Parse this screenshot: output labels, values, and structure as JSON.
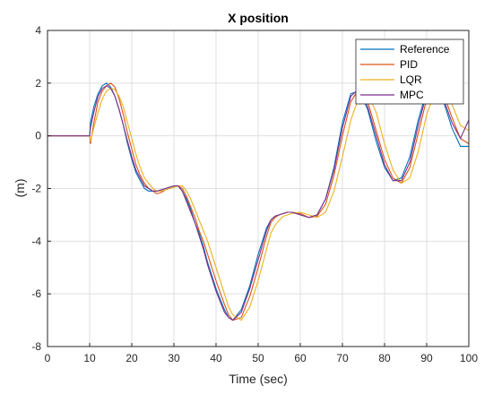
{
  "chart_data": {
    "type": "line",
    "title": "X position",
    "xlabel": "Time (sec)",
    "ylabel": "(m)",
    "xlim": [
      0,
      100
    ],
    "ylim": [
      -8,
      4
    ],
    "xticks": [
      "0",
      "10",
      "20",
      "30",
      "40",
      "50",
      "60",
      "70",
      "80",
      "90",
      "100"
    ],
    "yticks": [
      "4",
      "2",
      "0",
      "-2",
      "-4",
      "-6",
      "-8"
    ],
    "grid": true,
    "legend_position": "top-right",
    "series": [
      {
        "name": "Reference",
        "color": "#0072BD",
        "x": [
          0,
          10,
          10.2,
          11,
          12,
          13,
          14,
          15,
          16,
          17,
          18,
          19,
          20,
          21,
          22,
          23,
          24,
          25,
          26,
          27,
          28,
          29,
          30,
          31,
          32,
          33,
          34,
          35,
          36,
          37,
          38,
          40,
          42,
          43,
          44,
          46,
          48,
          50,
          52,
          53,
          54,
          55,
          56,
          57,
          58,
          60,
          62,
          64,
          66,
          68,
          70,
          72,
          74,
          76,
          78,
          80,
          82,
          84,
          86,
          88,
          90,
          92,
          94,
          96,
          98,
          100
        ],
        "y": [
          0,
          0,
          0.5,
          1.1,
          1.6,
          1.9,
          2.0,
          1.85,
          1.5,
          1.0,
          0.4,
          -0.3,
          -0.9,
          -1.4,
          -1.7,
          -2.0,
          -2.1,
          -2.1,
          -2.1,
          -2.05,
          -2.0,
          -1.95,
          -1.9,
          -1.9,
          -2.1,
          -2.4,
          -2.8,
          -3.3,
          -3.7,
          -4.2,
          -4.8,
          -5.8,
          -6.6,
          -6.9,
          -7.0,
          -6.6,
          -5.7,
          -4.5,
          -3.5,
          -3.2,
          -3.05,
          -3.0,
          -2.95,
          -2.9,
          -2.9,
          -3.0,
          -3.1,
          -3.0,
          -2.4,
          -1.2,
          0.5,
          1.6,
          1.7,
          1.0,
          -0.2,
          -1.2,
          -1.7,
          -1.6,
          -0.8,
          0.6,
          1.7,
          1.9,
          1.3,
          0.3,
          -0.4,
          -0.4
        ]
      },
      {
        "name": "PID",
        "color": "#D95319",
        "x": [
          0,
          10,
          10.2,
          11,
          12,
          13,
          14,
          15,
          16,
          17,
          18,
          19,
          20,
          21,
          22,
          23,
          24,
          25,
          26,
          27,
          28,
          29,
          30,
          31,
          32,
          33,
          34,
          35,
          36,
          37,
          38,
          40,
          42,
          43,
          44,
          46,
          48,
          50,
          52,
          53,
          54,
          55,
          56,
          57,
          58,
          60,
          62,
          64,
          66,
          68,
          70,
          72,
          74,
          76,
          78,
          80,
          82,
          84,
          86,
          88,
          90,
          92,
          94,
          96,
          98,
          100
        ],
        "y": [
          0,
          0,
          -0.3,
          0.5,
          1.3,
          1.7,
          1.9,
          2.0,
          1.85,
          1.4,
          0.8,
          0.1,
          -0.5,
          -1.1,
          -1.5,
          -1.8,
          -2.0,
          -2.1,
          -2.2,
          -2.15,
          -2.05,
          -2.0,
          -1.95,
          -1.9,
          -2.0,
          -2.3,
          -2.7,
          -3.1,
          -3.6,
          -4.0,
          -4.5,
          -5.5,
          -6.4,
          -6.8,
          -7.0,
          -6.9,
          -6.1,
          -5.0,
          -3.8,
          -3.3,
          -3.1,
          -3.0,
          -2.95,
          -2.9,
          -2.9,
          -2.95,
          -3.1,
          -3.05,
          -2.6,
          -1.5,
          0.0,
          1.3,
          1.8,
          1.3,
          0.2,
          -0.9,
          -1.6,
          -1.8,
          -1.2,
          0.1,
          1.4,
          1.9,
          1.6,
          0.7,
          -0.1,
          -0.3
        ]
      },
      {
        "name": "LQR",
        "color": "#EDB120",
        "x": [
          0,
          10,
          10.2,
          11,
          12,
          13,
          14,
          15,
          16,
          17,
          18,
          19,
          20,
          21,
          22,
          23,
          24,
          25,
          26,
          27,
          28,
          29,
          30,
          31,
          32,
          33,
          34,
          35,
          36,
          37,
          38,
          40,
          42,
          43,
          44,
          46,
          48,
          50,
          52,
          53,
          54,
          55,
          56,
          57,
          58,
          60,
          62,
          64,
          66,
          68,
          70,
          72,
          74,
          76,
          78,
          80,
          82,
          84,
          86,
          88,
          90,
          92,
          94,
          96,
          98,
          100
        ],
        "y": [
          0,
          0,
          -0.2,
          0.3,
          0.9,
          1.4,
          1.7,
          1.8,
          1.75,
          1.5,
          1.1,
          0.5,
          -0.1,
          -0.7,
          -1.2,
          -1.6,
          -1.8,
          -2.0,
          -2.1,
          -2.1,
          -2.05,
          -2.0,
          -1.95,
          -1.9,
          -1.9,
          -2.1,
          -2.4,
          -2.8,
          -3.2,
          -3.6,
          -4.0,
          -5.0,
          -6.0,
          -6.5,
          -6.8,
          -7.0,
          -6.5,
          -5.5,
          -4.3,
          -3.7,
          -3.4,
          -3.2,
          -3.05,
          -3.0,
          -2.95,
          -2.9,
          -3.0,
          -3.1,
          -2.9,
          -2.1,
          -0.8,
          0.6,
          1.5,
          1.6,
          0.9,
          -0.3,
          -1.3,
          -1.8,
          -1.6,
          -0.6,
          0.8,
          1.7,
          1.8,
          1.2,
          0.4,
          0.2
        ]
      },
      {
        "name": "MPC",
        "color": "#7E2F8E",
        "x": [
          0,
          10,
          10.2,
          11,
          12,
          13,
          14,
          15,
          16,
          17,
          18,
          19,
          20,
          21,
          22,
          23,
          24,
          25,
          26,
          27,
          28,
          29,
          30,
          31,
          32,
          33,
          34,
          35,
          36,
          37,
          38,
          40,
          42,
          43,
          44,
          46,
          48,
          50,
          52,
          53,
          54,
          55,
          56,
          57,
          58,
          60,
          62,
          64,
          66,
          68,
          70,
          72,
          74,
          76,
          78,
          80,
          82,
          84,
          86,
          88,
          90,
          92,
          94,
          96,
          98,
          100
        ],
        "y": [
          0,
          0,
          0.3,
          0.9,
          1.5,
          1.8,
          1.9,
          1.8,
          1.5,
          1.0,
          0.4,
          -0.2,
          -0.8,
          -1.3,
          -1.6,
          -1.9,
          -2.0,
          -2.1,
          -2.1,
          -2.05,
          -2.0,
          -1.95,
          -1.9,
          -1.9,
          -2.1,
          -2.5,
          -2.9,
          -3.3,
          -3.8,
          -4.3,
          -4.9,
          -5.9,
          -6.7,
          -6.9,
          -7.0,
          -6.7,
          -5.8,
          -4.7,
          -3.6,
          -3.2,
          -3.05,
          -3.0,
          -2.95,
          -2.9,
          -2.9,
          -3.0,
          -3.1,
          -3.0,
          -2.4,
          -1.3,
          0.3,
          1.5,
          1.8,
          1.1,
          0.0,
          -1.1,
          -1.7,
          -1.7,
          -1.0,
          0.4,
          1.6,
          1.9,
          1.4,
          0.5,
          -0.1,
          0.6
        ]
      }
    ]
  }
}
